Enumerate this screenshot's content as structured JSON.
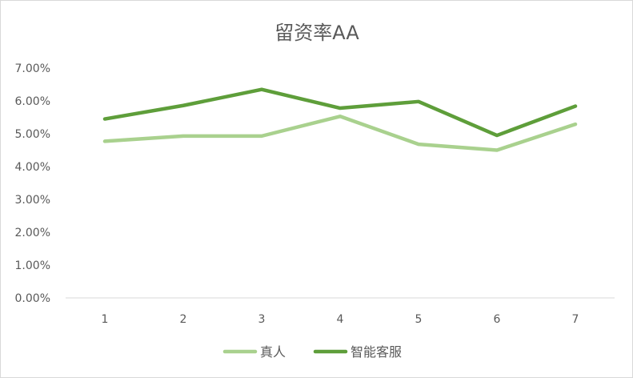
{
  "chart_data": {
    "type": "line",
    "title": "留资率AA",
    "categories": [
      "1",
      "2",
      "3",
      "4",
      "5",
      "6",
      "7"
    ],
    "ylim": [
      0,
      0.07
    ],
    "yticks": [
      "0.00%",
      "1.00%",
      "2.00%",
      "3.00%",
      "4.00%",
      "5.00%",
      "6.00%",
      "7.00%"
    ],
    "grid": false,
    "legend_position": "bottom",
    "series": [
      {
        "name": "真人",
        "color": "#A9D18E",
        "values": [
          0.0477,
          0.0493,
          0.0493,
          0.0553,
          0.0468,
          0.045,
          0.0529
        ]
      },
      {
        "name": "智能客服",
        "color": "#5E9E3A",
        "values": [
          0.0545,
          0.0586,
          0.0635,
          0.0578,
          0.0598,
          0.0495,
          0.0584
        ]
      }
    ]
  }
}
